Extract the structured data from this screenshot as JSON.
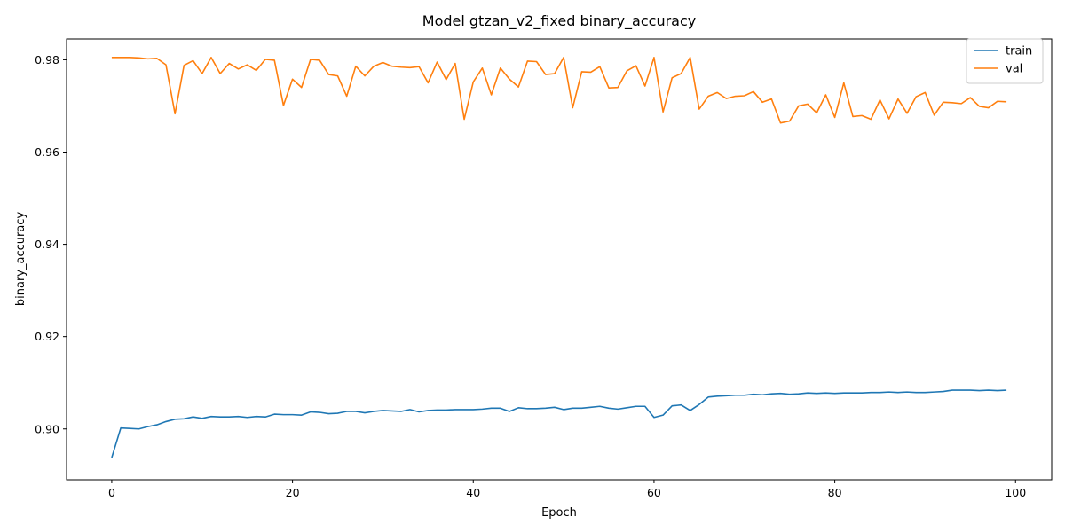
{
  "chart_data": {
    "type": "line",
    "title": "Model gtzan_v2_fixed binary_accuracy",
    "xlabel": "Epoch",
    "ylabel": "binary_accuracy",
    "xlim": [
      -5,
      104
    ],
    "ylim": [
      0.889,
      0.9845
    ],
    "xticks": [
      0,
      20,
      40,
      60,
      80,
      100
    ],
    "xtick_labels": [
      "0",
      "20",
      "40",
      "60",
      "80",
      "100"
    ],
    "yticks": [
      0.9,
      0.92,
      0.94,
      0.96,
      0.98
    ],
    "ytick_labels": [
      "0.90",
      "0.92",
      "0.94",
      "0.96",
      "0.98"
    ],
    "grid": false,
    "legend_position": "top-right",
    "series": [
      {
        "name": "train",
        "color": "#1f77b4",
        "values": [
          0.8938,
          0.9002,
          0.9001,
          0.9,
          0.9005,
          0.9009,
          0.9016,
          0.9021,
          0.9022,
          0.9026,
          0.9023,
          0.9027,
          0.9026,
          0.9026,
          0.9027,
          0.9025,
          0.9027,
          0.9026,
          0.9032,
          0.9031,
          0.9031,
          0.903,
          0.9037,
          0.9036,
          0.9033,
          0.9034,
          0.9038,
          0.9038,
          0.9035,
          0.9038,
          0.904,
          0.9039,
          0.9038,
          0.9042,
          0.9037,
          0.904,
          0.9041,
          0.9041,
          0.9042,
          0.9042,
          0.9042,
          0.9043,
          0.9045,
          0.9045,
          0.9038,
          0.9046,
          0.9044,
          0.9044,
          0.9045,
          0.9047,
          0.9042,
          0.9045,
          0.9045,
          0.9047,
          0.9049,
          0.9045,
          0.9043,
          0.9046,
          0.9049,
          0.9049,
          0.9025,
          0.903,
          0.905,
          0.9052,
          0.904,
          0.9053,
          0.9069,
          0.9071,
          0.9072,
          0.9073,
          0.9073,
          0.9075,
          0.9074,
          0.9076,
          0.9077,
          0.9075,
          0.9076,
          0.9078,
          0.9077,
          0.9078,
          0.9077,
          0.9078,
          0.9078,
          0.9078,
          0.9079,
          0.9079,
          0.908,
          0.9079,
          0.908,
          0.9079,
          0.9079,
          0.908,
          0.9081,
          0.9084,
          0.9084,
          0.9084,
          0.9083,
          0.9084,
          0.9083,
          0.9084
        ]
      },
      {
        "name": "val",
        "color": "#ff7f0e",
        "values": [
          0.9805,
          0.9805,
          0.9805,
          0.9804,
          0.9802,
          0.9803,
          0.9789,
          0.9683,
          0.9788,
          0.9798,
          0.977,
          0.9805,
          0.977,
          0.9792,
          0.978,
          0.9789,
          0.9777,
          0.9801,
          0.9799,
          0.9701,
          0.9758,
          0.974,
          0.9801,
          0.9799,
          0.9768,
          0.9765,
          0.9721,
          0.9786,
          0.9765,
          0.9786,
          0.9794,
          0.9786,
          0.9784,
          0.9783,
          0.9785,
          0.975,
          0.9795,
          0.9757,
          0.9792,
          0.9671,
          0.9752,
          0.9782,
          0.9724,
          0.9782,
          0.9758,
          0.9741,
          0.9797,
          0.9796,
          0.9768,
          0.977,
          0.9805,
          0.9696,
          0.9774,
          0.9773,
          0.9785,
          0.9739,
          0.974,
          0.9776,
          0.9787,
          0.9743,
          0.9805,
          0.9687,
          0.9761,
          0.977,
          0.9805,
          0.9693,
          0.9721,
          0.9729,
          0.9716,
          0.9721,
          0.9722,
          0.9731,
          0.9708,
          0.9715,
          0.9663,
          0.9667,
          0.97,
          0.9704,
          0.9685,
          0.9724,
          0.9675,
          0.975,
          0.9677,
          0.9679,
          0.9671,
          0.9713,
          0.9672,
          0.9715,
          0.9684,
          0.972,
          0.9729,
          0.968,
          0.9708,
          0.9707,
          0.9705,
          0.9718,
          0.9699,
          0.9696,
          0.971,
          0.9709
        ]
      }
    ]
  }
}
